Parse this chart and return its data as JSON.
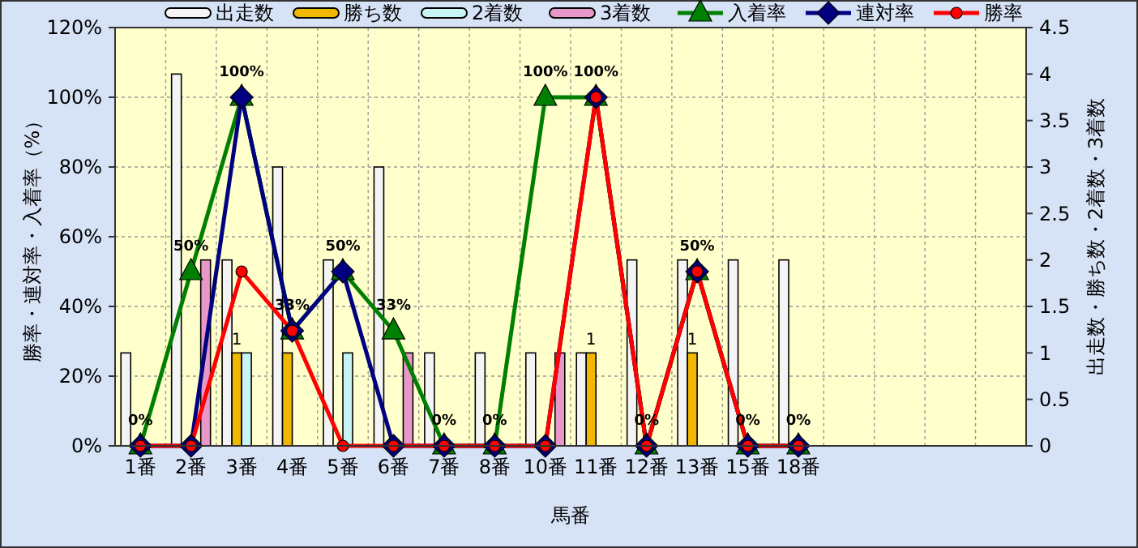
{
  "chart_data": {
    "type": "bar",
    "categories": [
      "1番",
      "2番",
      "3番",
      "4番",
      "5番",
      "6番",
      "7番",
      "8番",
      "10番",
      "11番",
      "12番",
      "13番",
      "15番",
      "18番",
      null,
      null,
      null,
      null
    ],
    "xlabel": "馬番",
    "ylabel": "勝率・連対率・入着率（%）",
    "y2label": "出走数・勝ち数・2着数・3着数",
    "ylim": [
      0,
      120
    ],
    "yticks": [
      {
        "value": 0,
        "label": "0%"
      },
      {
        "value": 20,
        "label": "20%"
      },
      {
        "value": 40,
        "label": "40%"
      },
      {
        "value": 60,
        "label": "60%"
      },
      {
        "value": 80,
        "label": "80%"
      },
      {
        "value": 100,
        "label": "100%"
      },
      {
        "value": 120,
        "label": "120%"
      }
    ],
    "y2lim": [
      0,
      4.5
    ],
    "y2ticks": [
      0,
      0.5,
      1,
      1.5,
      2,
      2.5,
      3,
      3.5,
      4,
      4.5
    ],
    "grid": true,
    "legend": "top",
    "series": [
      {
        "name": "出走数",
        "axis": "y2",
        "color": "#f4f4f4",
        "values": [
          1,
          4,
          2,
          3,
          2,
          3,
          1,
          1,
          1,
          1,
          2,
          2,
          2,
          2,
          null,
          null,
          null,
          null
        ]
      },
      {
        "name": "勝ち数",
        "axis": "y2",
        "color": "#f0b800",
        "values": [
          0,
          0,
          1,
          1,
          0,
          0,
          0,
          0,
          0,
          1,
          0,
          1,
          0,
          0,
          null,
          null,
          null,
          null
        ],
        "value_labels": [
          null,
          null,
          "1",
          null,
          null,
          null,
          null,
          null,
          null,
          "1",
          null,
          "1",
          null,
          null,
          null,
          null,
          null,
          null
        ]
      },
      {
        "name": "2着数",
        "axis": "y2",
        "color": "#c8f4f4",
        "values": [
          0,
          0,
          1,
          0,
          1,
          0,
          0,
          0,
          0,
          0,
          0,
          0,
          0,
          0,
          null,
          null,
          null,
          null
        ]
      },
      {
        "name": "3着数",
        "axis": "y2",
        "color": "#e898c8",
        "values": [
          0,
          2,
          0,
          0,
          0,
          1,
          0,
          0,
          1,
          0,
          0,
          0,
          0,
          0,
          null,
          null,
          null,
          null
        ]
      },
      {
        "name": "入着率",
        "type": "line",
        "color": "#008000",
        "marker": "triangle",
        "values": [
          0,
          50,
          100,
          33,
          50,
          33,
          0,
          0,
          100,
          100,
          0,
          50,
          0,
          0,
          null,
          null,
          null,
          null
        ],
        "value_labels": [
          "0%",
          "50%",
          "100%",
          "33%",
          "50%",
          "33%",
          "0%",
          "0%",
          "100%",
          "100%",
          "0%",
          "50%",
          "0%",
          "0%",
          null,
          null,
          null,
          null
        ]
      },
      {
        "name": "連対率",
        "type": "line",
        "color": "#000080",
        "marker": "diamond",
        "values": [
          0,
          0,
          100,
          33,
          50,
          0,
          0,
          0,
          0,
          100,
          0,
          50,
          0,
          0,
          null,
          null,
          null,
          null
        ]
      },
      {
        "name": "勝率",
        "type": "line",
        "color": "#ff0000",
        "marker": "circle",
        "values": [
          0,
          0,
          50,
          33,
          0,
          0,
          0,
          0,
          0,
          100,
          0,
          50,
          0,
          0,
          null,
          null,
          null,
          null
        ]
      }
    ]
  }
}
